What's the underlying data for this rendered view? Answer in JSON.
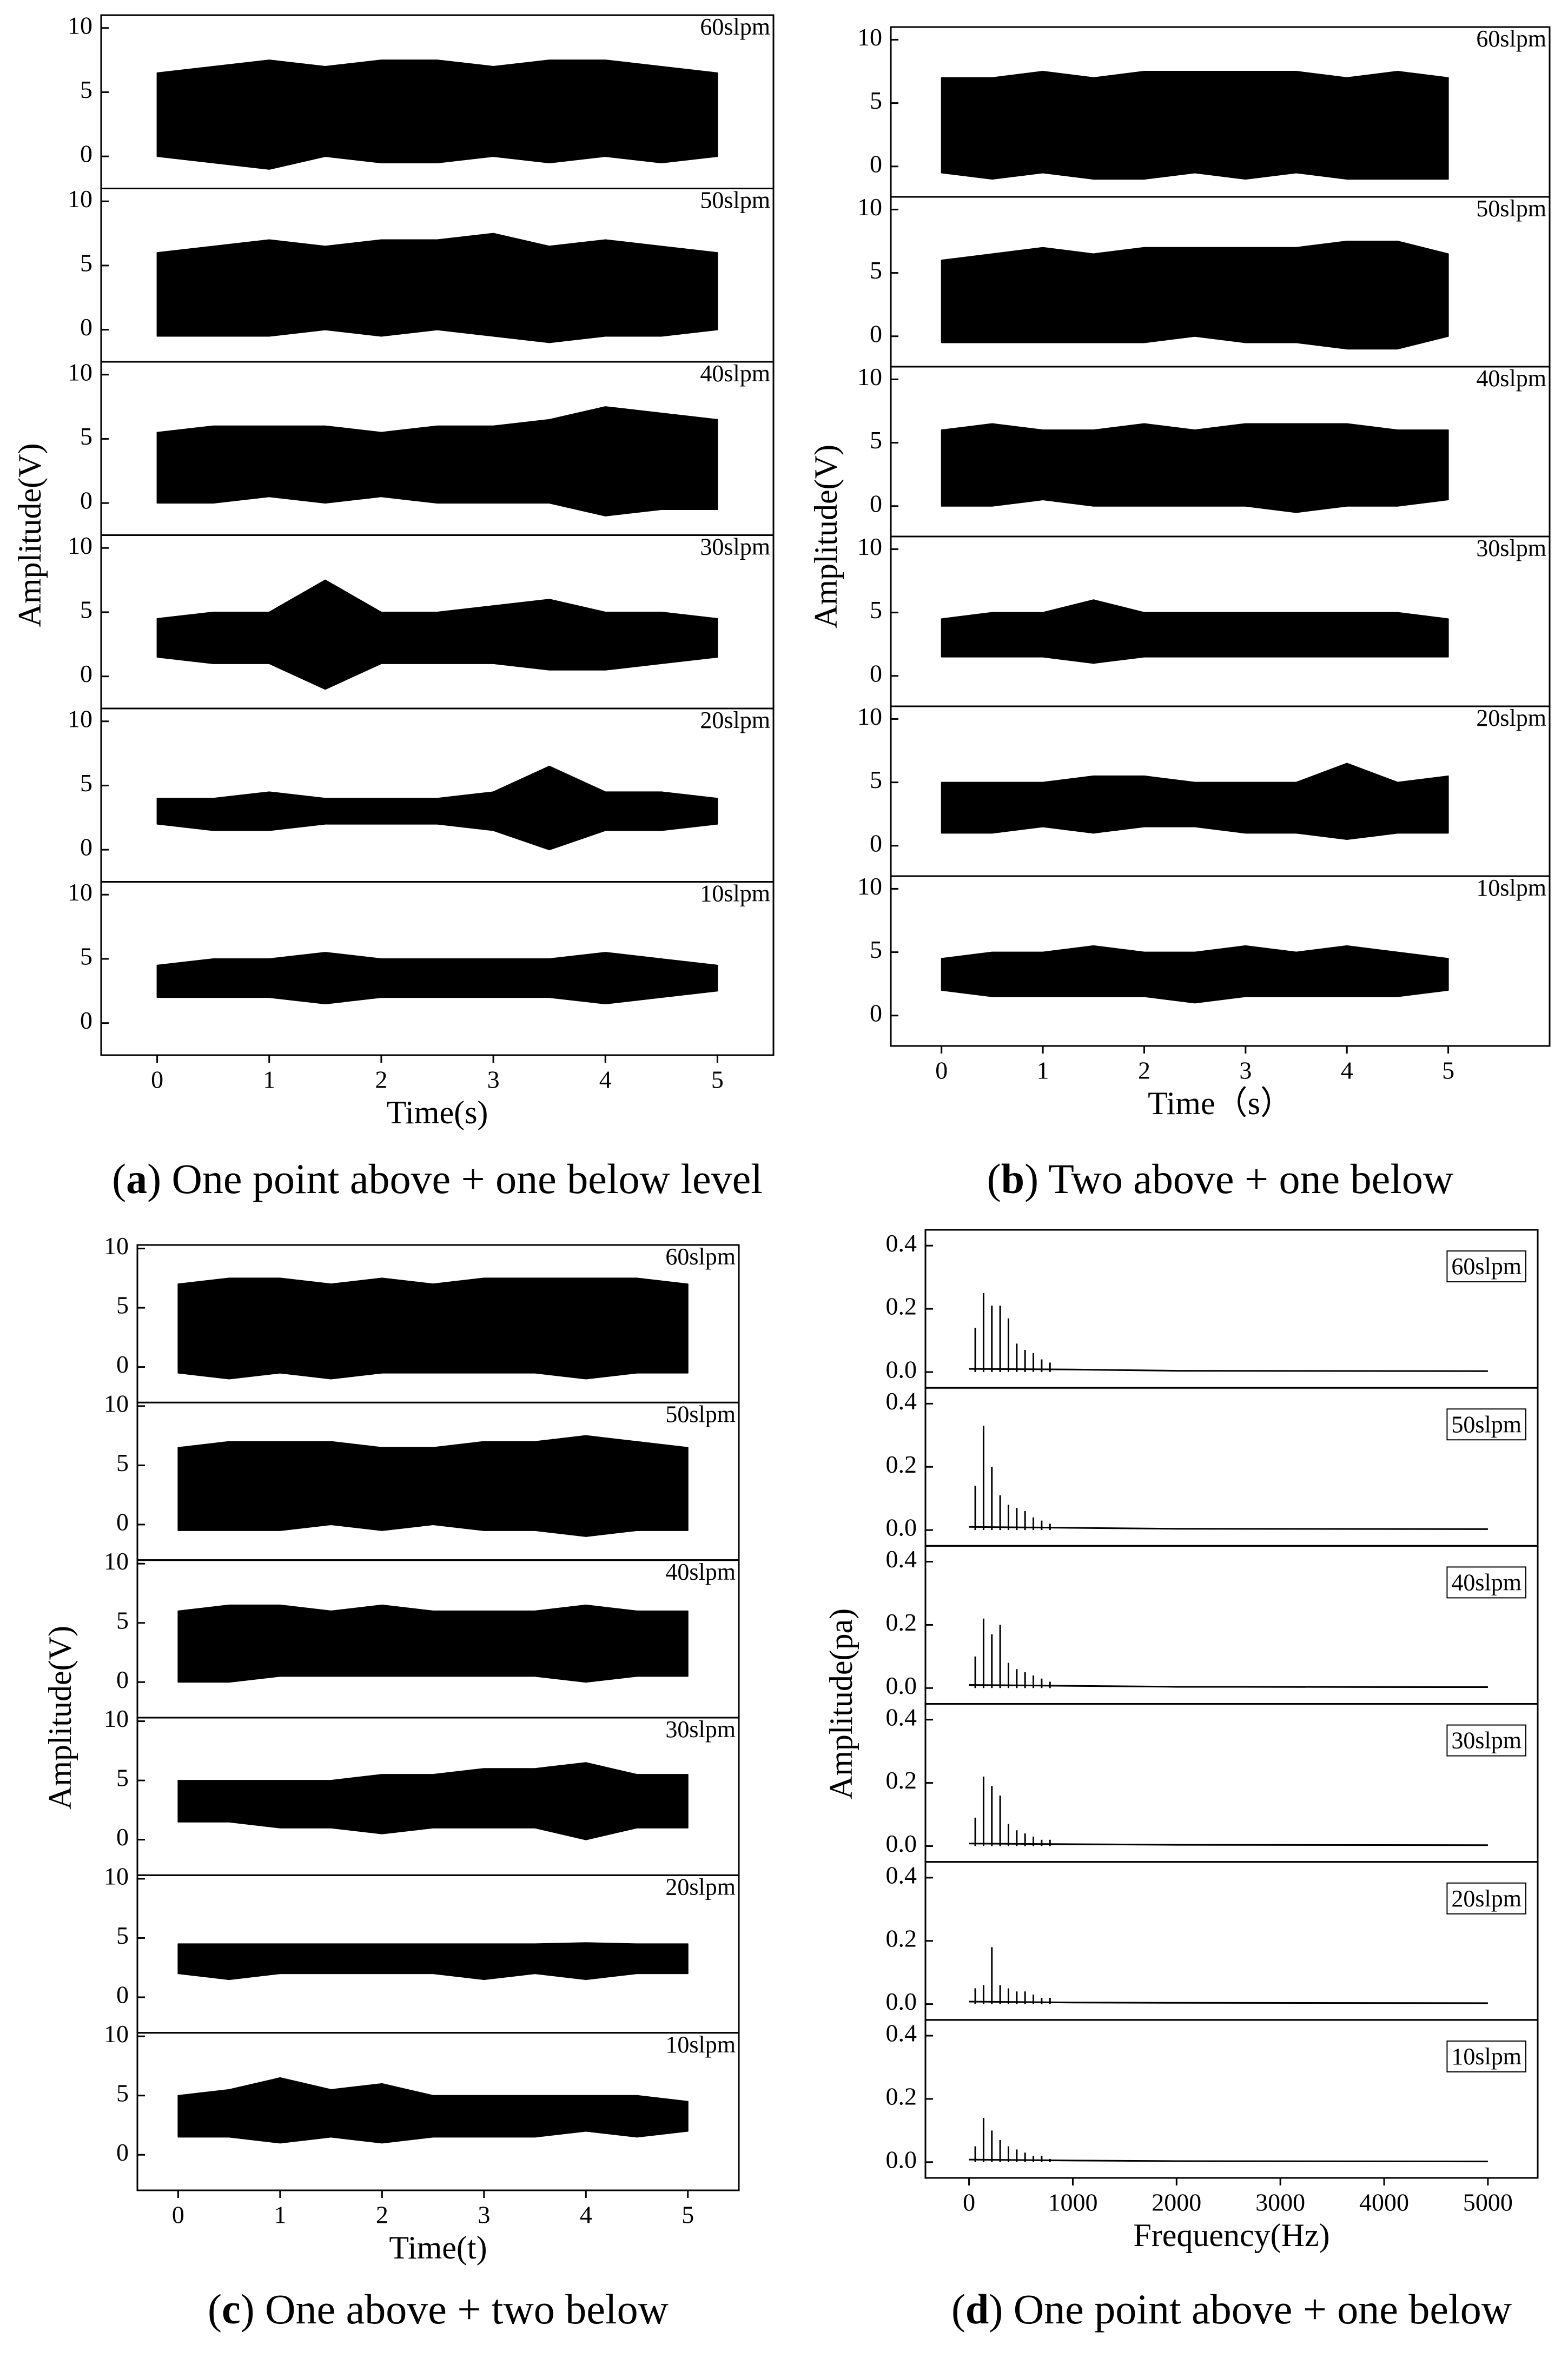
{
  "chart_data": [
    {
      "type": "area",
      "xlabel": "Time(s)",
      "ylabel": "Amplitude(V)",
      "caption": [
        {
          "text": "("
        },
        {
          "text": "a",
          "bold": true
        },
        {
          "text": ") One point above + one below level"
        }
      ],
      "xlim": [
        -0.5,
        5.5
      ],
      "xticks": [
        0,
        1,
        2,
        3,
        4,
        5
      ],
      "ylim": [
        -2.5,
        11
      ],
      "yticks": [
        0,
        5,
        10
      ],
      "color": "#000000",
      "x": [
        0,
        0.5,
        1,
        1.5,
        2,
        2.5,
        3,
        3.5,
        4,
        4.5,
        5
      ],
      "subplots": [
        {
          "name": "60slpm",
          "upper": [
            6.5,
            7,
            7.5,
            7,
            7.5,
            7.5,
            7,
            7.5,
            7.5,
            7,
            6.5
          ],
          "lower": [
            0,
            -0.5,
            -1,
            0,
            -0.5,
            -0.5,
            0,
            -0.5,
            0,
            -0.5,
            0
          ]
        },
        {
          "name": "50slpm",
          "upper": [
            6,
            6.5,
            7,
            6.5,
            7,
            7,
            7.5,
            6.5,
            7,
            6.5,
            6
          ],
          "lower": [
            -0.5,
            -0.5,
            -0.5,
            0,
            -0.5,
            0,
            -0.5,
            -1,
            -0.5,
            -0.5,
            0
          ]
        },
        {
          "name": "40slpm",
          "upper": [
            5.5,
            6,
            6,
            6,
            5.5,
            6,
            6,
            6.5,
            7.5,
            7,
            6.5
          ],
          "lower": [
            0,
            0,
            0.5,
            0,
            0.5,
            0,
            0,
            0,
            -1,
            -0.5,
            -0.5
          ]
        },
        {
          "name": "30slpm",
          "upper": [
            4.5,
            5,
            5,
            7.5,
            5,
            5,
            5.5,
            6,
            5,
            5,
            4.5
          ],
          "lower": [
            1.5,
            1,
            1,
            -1,
            1,
            1,
            1,
            0.5,
            0.5,
            1,
            1.5
          ]
        },
        {
          "name": "20slpm",
          "upper": [
            4,
            4,
            4.5,
            4,
            4,
            4,
            4.5,
            6.5,
            4.5,
            4.5,
            4
          ],
          "lower": [
            2,
            1.5,
            1.5,
            2,
            2,
            2,
            1.5,
            0,
            1.5,
            1.5,
            2
          ]
        },
        {
          "name": "10slpm",
          "upper": [
            4.5,
            5,
            5,
            5.5,
            5,
            5,
            5,
            5,
            5.5,
            5,
            4.5
          ],
          "lower": [
            2,
            2,
            2,
            1.5,
            2,
            2,
            2,
            2,
            1.5,
            2,
            2.5
          ]
        }
      ]
    },
    {
      "type": "area",
      "xlabel": "Time（s）",
      "ylabel": "Amplitude(V)",
      "caption": [
        {
          "text": "("
        },
        {
          "text": "b",
          "bold": true
        },
        {
          "text": ") Two above + one below"
        }
      ],
      "xlim": [
        -0.5,
        6
      ],
      "xticks": [
        0,
        1,
        2,
        3,
        4,
        5
      ],
      "ylim": [
        -2.4,
        11
      ],
      "yticks": [
        0,
        5,
        10
      ],
      "color": "#000000",
      "x": [
        0,
        0.5,
        1,
        1.5,
        2,
        2.5,
        3,
        3.5,
        4,
        4.5,
        5
      ],
      "subplots": [
        {
          "name": "60slpm",
          "upper": [
            7,
            7,
            7.5,
            7,
            7.5,
            7.5,
            7.5,
            7.5,
            7,
            7.5,
            7
          ],
          "lower": [
            -0.5,
            -1,
            -0.5,
            -1,
            -1,
            -0.5,
            -1,
            -0.5,
            -1,
            -1,
            -1
          ]
        },
        {
          "name": "50slpm",
          "upper": [
            6,
            6.5,
            7,
            6.5,
            7,
            7,
            7,
            7,
            7.5,
            7.5,
            6.5
          ],
          "lower": [
            -0.5,
            -0.5,
            -0.5,
            -0.5,
            -0.5,
            0,
            -0.5,
            -0.5,
            -1,
            -1,
            0
          ]
        },
        {
          "name": "40slpm",
          "upper": [
            6,
            6.5,
            6,
            6,
            6.5,
            6,
            6.5,
            6.5,
            6.5,
            6,
            6
          ],
          "lower": [
            0,
            0,
            0.5,
            0,
            0,
            0,
            0,
            -0.5,
            0,
            0,
            0.5
          ]
        },
        {
          "name": "30slpm",
          "upper": [
            4.5,
            5,
            5,
            6,
            5,
            5,
            5,
            5,
            5,
            5,
            4.5
          ],
          "lower": [
            1.5,
            1.5,
            1.5,
            1,
            1.5,
            1.5,
            1.5,
            1.5,
            1.5,
            1.5,
            1.5
          ]
        },
        {
          "name": "20slpm",
          "upper": [
            5,
            5,
            5,
            5.5,
            5.5,
            5,
            5,
            5,
            6.5,
            5,
            5.5
          ],
          "lower": [
            1,
            1,
            1.5,
            1,
            1.5,
            1.5,
            1,
            1,
            0.5,
            1,
            1
          ]
        },
        {
          "name": "10slpm",
          "upper": [
            4.5,
            5,
            5,
            5.5,
            5,
            5,
            5.5,
            5,
            5.5,
            5,
            4.5
          ],
          "lower": [
            2,
            1.5,
            1.5,
            1.5,
            1.5,
            1,
            1.5,
            1.5,
            1.5,
            1.5,
            2
          ]
        }
      ]
    },
    {
      "type": "area",
      "xlabel": "Time(t)",
      "ylabel": "Amplitude(V)",
      "caption": [
        {
          "text": "("
        },
        {
          "text": "c",
          "bold": true
        },
        {
          "text": ") One above + two below"
        }
      ],
      "xlim": [
        -0.4,
        5.5
      ],
      "xticks": [
        0,
        1,
        2,
        3,
        4,
        5
      ],
      "ylim": [
        -3,
        10.3
      ],
      "yticks": [
        0,
        5,
        10
      ],
      "color": "#000000",
      "x": [
        0,
        0.5,
        1,
        1.5,
        2,
        2.5,
        3,
        3.5,
        4,
        4.5,
        5
      ],
      "subplots": [
        {
          "name": "60slpm",
          "upper": [
            7,
            7.5,
            7.5,
            7,
            7.5,
            7,
            7.5,
            7.5,
            7.5,
            7.5,
            7
          ],
          "lower": [
            -0.5,
            -1,
            -0.5,
            -1,
            -0.5,
            -0.5,
            -0.5,
            -0.5,
            -1,
            -0.5,
            -0.5
          ]
        },
        {
          "name": "50slpm",
          "upper": [
            6.5,
            7,
            7,
            7,
            6.5,
            6.5,
            7,
            7,
            7.5,
            7,
            6.5
          ],
          "lower": [
            -0.5,
            -0.5,
            -0.5,
            0,
            -0.5,
            0,
            -0.5,
            -0.5,
            -1,
            -0.5,
            -0.5
          ]
        },
        {
          "name": "40slpm",
          "upper": [
            6,
            6.5,
            6.5,
            6,
            6.5,
            6,
            6,
            6,
            6.5,
            6,
            6
          ],
          "lower": [
            0,
            0,
            0.5,
            0.5,
            0.5,
            0.5,
            0.5,
            0.5,
            0,
            0.5,
            0.5
          ]
        },
        {
          "name": "30slpm",
          "upper": [
            5,
            5,
            5,
            5,
            5.5,
            5.5,
            6,
            6,
            6.5,
            5.5,
            5.5
          ],
          "lower": [
            1.5,
            1.5,
            1,
            1,
            0.5,
            1,
            1,
            1,
            0,
            1,
            1
          ]
        },
        {
          "name": "20slpm",
          "upper": [
            4.5,
            4.5,
            4.5,
            4.5,
            4.5,
            4.5,
            4.5,
            4.5,
            4.6,
            4.5,
            4.5
          ],
          "lower": [
            2,
            1.5,
            2,
            2,
            2,
            2,
            1.5,
            2,
            1.5,
            2,
            2
          ]
        },
        {
          "name": "10slpm",
          "upper": [
            5,
            5.5,
            6.5,
            5.5,
            6,
            5,
            5,
            5,
            5,
            5,
            4.5
          ],
          "lower": [
            1.5,
            1.5,
            1,
            1.5,
            1,
            1.5,
            1.5,
            1.5,
            2,
            1.5,
            2
          ]
        }
      ]
    },
    {
      "type": "stem",
      "xlabel": "Frequency(Hz)",
      "ylabel": "Amplitude(pa)",
      "caption": [
        {
          "text": "("
        },
        {
          "text": "d",
          "bold": true
        },
        {
          "text": ") One point above + one below"
        }
      ],
      "xlim": [
        -420,
        5480
      ],
      "xticks": [
        0,
        1000,
        2000,
        3000,
        4000,
        5000
      ],
      "ylim": [
        -0.05,
        0.45
      ],
      "yticks": [
        {
          "value": 0,
          "label": "0.0"
        },
        0.2,
        0.4
      ],
      "color": "#000000",
      "legend_box": true,
      "x": [
        60,
        140,
        220,
        300,
        380,
        460,
        540,
        620,
        700,
        780
      ],
      "floor_x": [
        0,
        1000,
        2000,
        5000
      ],
      "subplots": [
        {
          "name": "60slpm",
          "values": [
            0.14,
            0.25,
            0.21,
            0.21,
            0.17,
            0.09,
            0.07,
            0.06,
            0.04,
            0.03
          ],
          "floor": [
            0.01,
            0.008,
            0.004,
            0.003
          ]
        },
        {
          "name": "50slpm",
          "values": [
            0.14,
            0.33,
            0.2,
            0.11,
            0.08,
            0.07,
            0.06,
            0.04,
            0.03,
            0.02
          ],
          "floor": [
            0.01,
            0.007,
            0.004,
            0.003
          ]
        },
        {
          "name": "40slpm",
          "values": [
            0.1,
            0.22,
            0.17,
            0.2,
            0.08,
            0.06,
            0.05,
            0.04,
            0.03,
            0.02
          ],
          "floor": [
            0.01,
            0.007,
            0.004,
            0.003
          ]
        },
        {
          "name": "30slpm",
          "values": [
            0.09,
            0.22,
            0.19,
            0.16,
            0.07,
            0.05,
            0.04,
            0.03,
            0.02,
            0.02
          ],
          "floor": [
            0.008,
            0.006,
            0.004,
            0.003
          ]
        },
        {
          "name": "20slpm",
          "values": [
            0.05,
            0.06,
            0.18,
            0.06,
            0.05,
            0.04,
            0.04,
            0.03,
            0.02,
            0.02
          ],
          "floor": [
            0.008,
            0.005,
            0.004,
            0.003
          ]
        },
        {
          "name": "10slpm",
          "values": [
            0.05,
            0.14,
            0.1,
            0.07,
            0.05,
            0.04,
            0.03,
            0.02,
            0.02,
            0.01
          ],
          "floor": [
            0.008,
            0.005,
            0.003,
            0.002
          ]
        }
      ]
    }
  ]
}
